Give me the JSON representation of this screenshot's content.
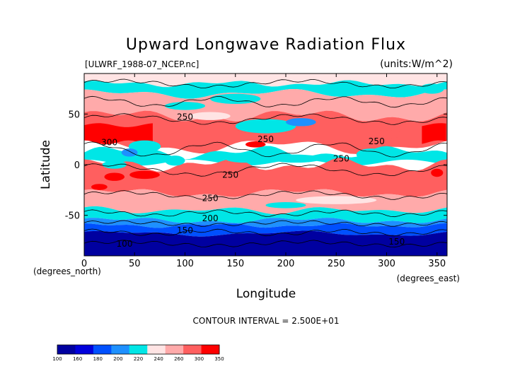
{
  "chart_data": {
    "type": "heatmap",
    "title": "Upward Longwave Radiation Flux",
    "subtitle_left": "[ULWRF_1988-07_NCEP.nc]",
    "subtitle_right": "(units:W/m^2)",
    "xlabel": "Longitude",
    "ylabel": "Latitude",
    "x_unit": "(degrees_east)",
    "y_unit": "(degrees_north)",
    "xlim": [
      0,
      360
    ],
    "ylim": [
      -90,
      90
    ],
    "x_ticks": [
      0,
      50,
      100,
      150,
      200,
      250,
      300,
      350
    ],
    "y_ticks": [
      -50,
      0,
      50
    ],
    "footer": "CONTOUR INTERVAL = 2.500E+01",
    "colorbar": {
      "labels": [
        "100",
        "160",
        "180",
        "200",
        "220",
        "240",
        "260",
        "300",
        "350"
      ],
      "colors": [
        "#0000a0",
        "#0000dc",
        "#0050ff",
        "#1e90ff",
        "#00e6e6",
        "#ffe4e4",
        "#ffaaaa",
        "#ff5f5f",
        "#ff0000"
      ]
    },
    "contour_labels": [
      {
        "text": "250",
        "lon": 100,
        "lat": 47
      },
      {
        "text": "300",
        "lon": 25,
        "lat": 22
      },
      {
        "text": "250",
        "lon": 180,
        "lat": 25
      },
      {
        "text": "250",
        "lon": 290,
        "lat": 23
      },
      {
        "text": "250",
        "lon": 255,
        "lat": 6
      },
      {
        "text": "250",
        "lon": 145,
        "lat": -10
      },
      {
        "text": "250",
        "lon": 125,
        "lat": -33
      },
      {
        "text": "200",
        "lon": 125,
        "lat": -53
      },
      {
        "text": "150",
        "lon": 100,
        "lat": -65
      },
      {
        "text": "100",
        "lon": 40,
        "lat": -78
      },
      {
        "text": "150",
        "lon": 310,
        "lat": -76
      }
    ],
    "bands": [
      {
        "name": "north-pole-cap",
        "color": "#ffe4e4"
      },
      {
        "name": "north-polar-cyan",
        "color": "#00e6e6"
      },
      {
        "name": "north-mid-pink",
        "color": "#ffaaaa"
      },
      {
        "name": "north-subtropic",
        "color": "#ff5f5f"
      },
      {
        "name": "sahara-max",
        "color": "#ff0000"
      },
      {
        "name": "itcz",
        "color": "#00e6e6"
      },
      {
        "name": "south-subtropic",
        "color": "#ff5f5f"
      },
      {
        "name": "south-mid",
        "color": "#ffaaaa"
      },
      {
        "name": "southern-ocean-cyan",
        "color": "#00e6e6"
      },
      {
        "name": "south-blue",
        "color": "#1e90ff"
      },
      {
        "name": "south-deep-blue",
        "color": "#0050ff"
      },
      {
        "name": "antarctica",
        "color": "#0000a0"
      }
    ]
  }
}
